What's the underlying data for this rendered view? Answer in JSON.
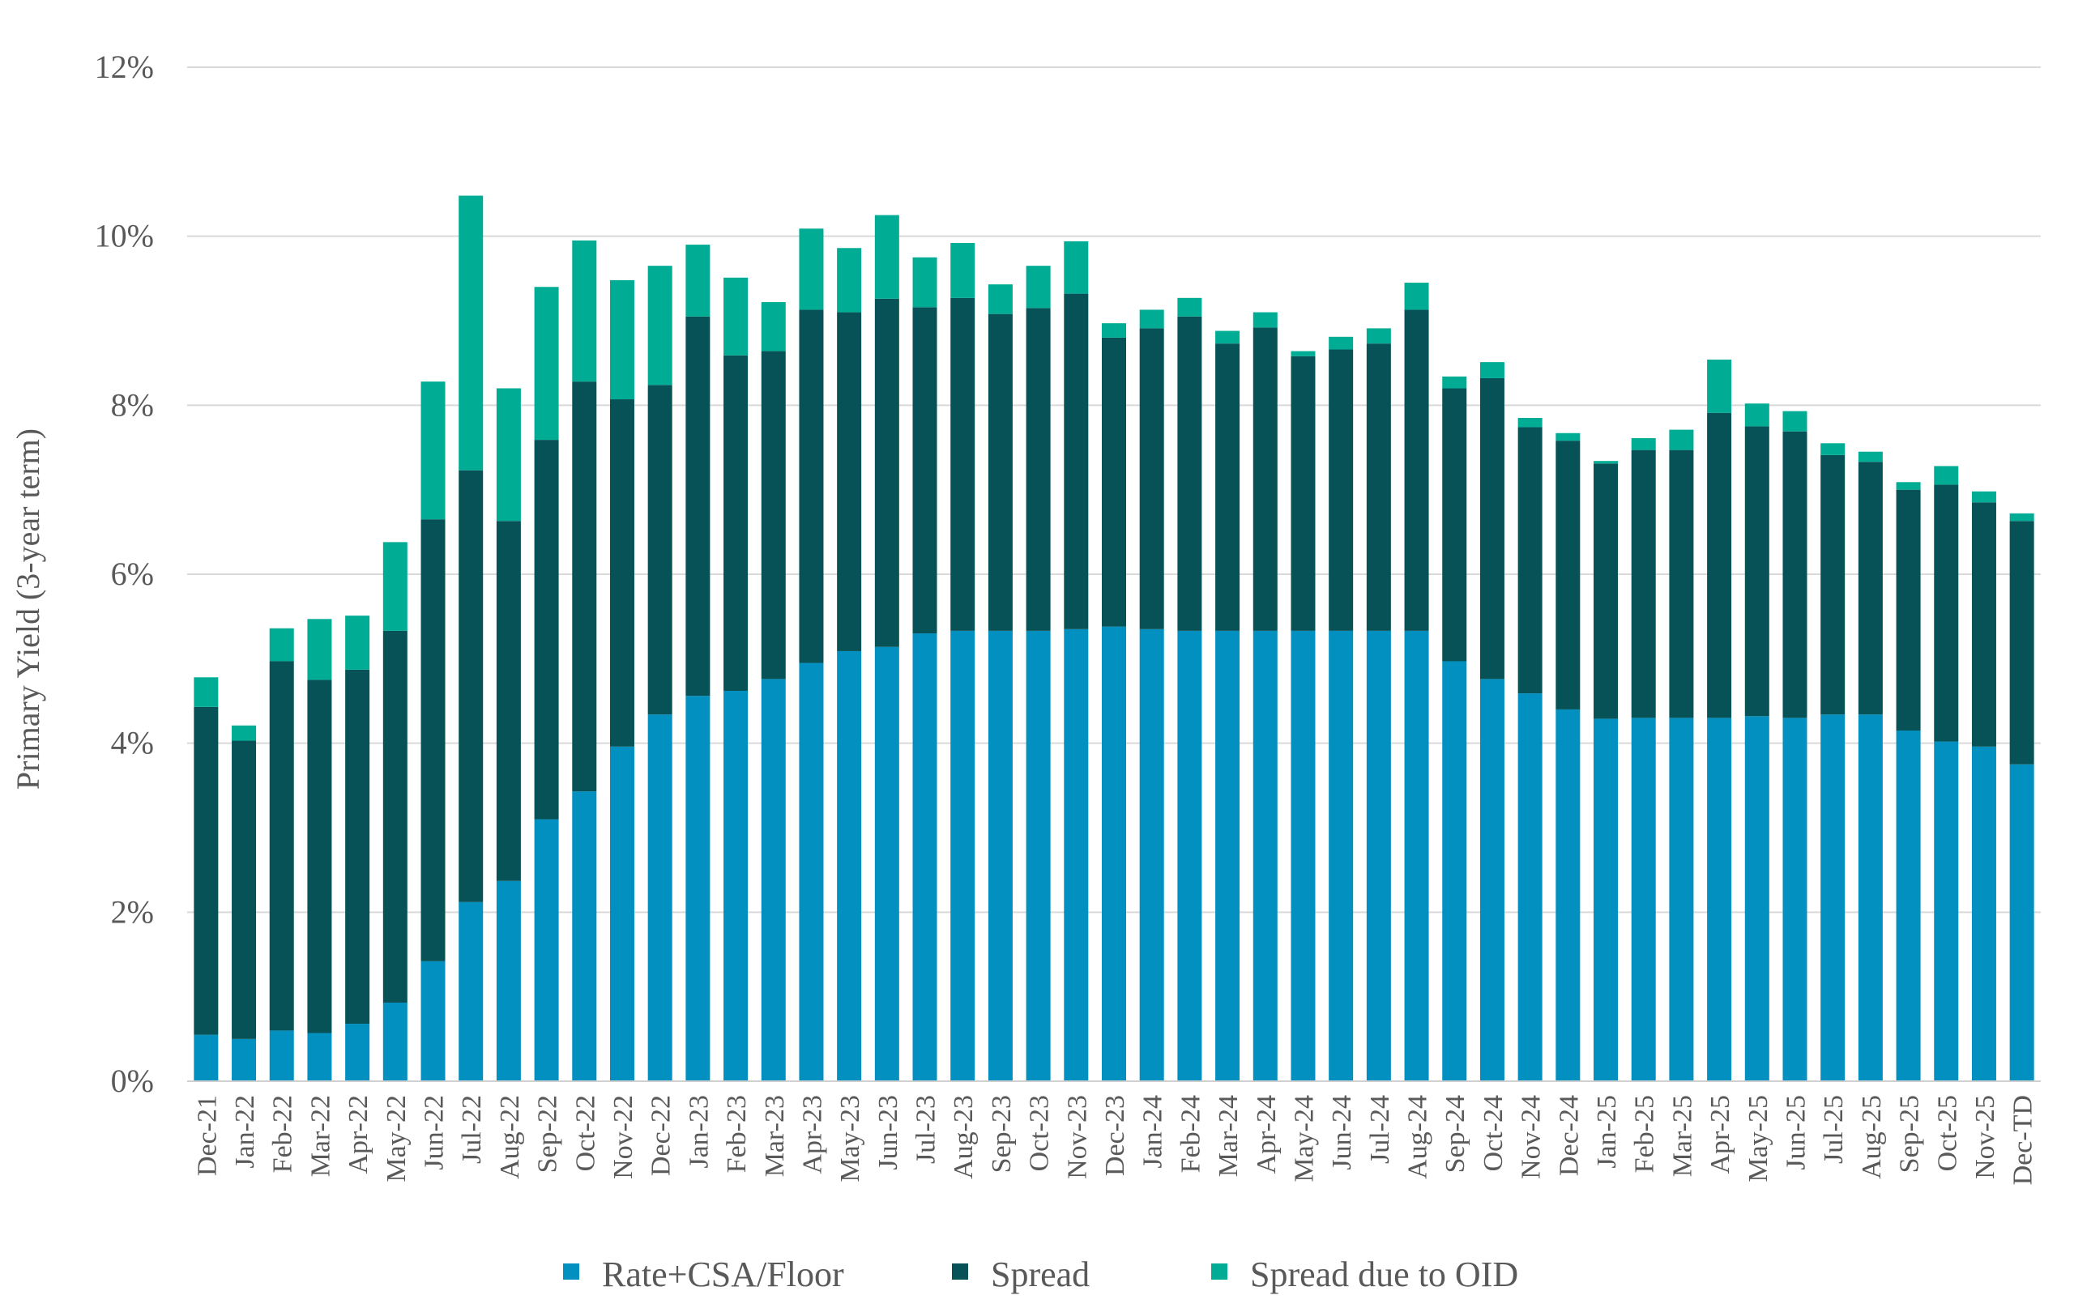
{
  "chart_data": {
    "type": "bar",
    "stacked": true,
    "title": "",
    "xlabel": "",
    "ylabel": "Primary Yield (3-year term)",
    "ylim": [
      0,
      12
    ],
    "yticks": [
      "0%",
      "2%",
      "4%",
      "6%",
      "8%",
      "10%",
      "12%"
    ],
    "ytick_values": [
      0,
      2,
      4,
      6,
      8,
      10,
      12
    ],
    "grid": true,
    "legend_placement": "bottom",
    "categories": [
      "Dec-21",
      "Jan-22",
      "Feb-22",
      "Mar-22",
      "Apr-22",
      "May-22",
      "Jun-22",
      "Jul-22",
      "Aug-22",
      "Sep-22",
      "Oct-22",
      "Nov-22",
      "Dec-22",
      "Jan-23",
      "Feb-23",
      "Mar-23",
      "Apr-23",
      "May-23",
      "Jun-23",
      "Jul-23",
      "Aug-23",
      "Sep-23",
      "Oct-23",
      "Nov-23",
      "Dec-23",
      "Jan-24",
      "Feb-24",
      "Mar-24",
      "Apr-24",
      "May-24",
      "Jun-24",
      "Jul-24",
      "Aug-24",
      "Sep-24",
      "Oct-24",
      "Nov-24",
      "Dec-24",
      "Jan-25",
      "Feb-25",
      "Mar-25",
      "Apr-25",
      "May-25",
      "Jun-25",
      "Jul-25",
      "Aug-25",
      "Sep-25",
      "Oct-25",
      "Nov-25",
      "Dec-TD"
    ],
    "series": [
      {
        "name": "Rate+CSA/Floor",
        "color": "#0290c0",
        "values": [
          0.55,
          0.5,
          0.6,
          0.57,
          0.68,
          0.93,
          1.42,
          2.12,
          2.37,
          3.1,
          3.43,
          3.96,
          4.34,
          4.56,
          4.62,
          4.76,
          4.95,
          5.09,
          5.14,
          5.3,
          5.33,
          5.33,
          5.33,
          5.35,
          5.38,
          5.35,
          5.33,
          5.33,
          5.33,
          5.33,
          5.33,
          5.33,
          5.33,
          4.97,
          4.76,
          4.59,
          4.4,
          4.29,
          4.3,
          4.3,
          4.3,
          4.32,
          4.3,
          4.34,
          4.34,
          4.15,
          4.02,
          3.96,
          3.75
        ]
      },
      {
        "name": "Spread",
        "color": "#075257",
        "values": [
          3.88,
          3.53,
          4.37,
          4.18,
          4.19,
          4.4,
          5.23,
          5.11,
          4.26,
          4.49,
          4.85,
          4.11,
          3.9,
          4.49,
          3.97,
          3.88,
          4.18,
          4.01,
          4.12,
          3.86,
          3.94,
          3.75,
          3.82,
          3.97,
          3.42,
          3.56,
          3.72,
          3.4,
          3.59,
          3.25,
          3.33,
          3.4,
          3.8,
          3.23,
          3.56,
          3.15,
          3.18,
          3.02,
          3.17,
          3.17,
          3.61,
          3.43,
          3.39,
          3.07,
          2.99,
          2.85,
          3.04,
          2.89,
          2.88
        ]
      },
      {
        "name": "Spread due to OID",
        "color": "#00ad94",
        "values": [
          0.35,
          0.18,
          0.39,
          0.72,
          0.64,
          1.05,
          1.63,
          3.25,
          1.57,
          1.81,
          1.67,
          1.41,
          1.41,
          0.85,
          0.92,
          0.58,
          0.96,
          0.76,
          0.99,
          0.59,
          0.65,
          0.35,
          0.5,
          0.62,
          0.17,
          0.22,
          0.22,
          0.15,
          0.18,
          0.06,
          0.15,
          0.18,
          0.32,
          0.14,
          0.19,
          0.11,
          0.09,
          0.03,
          0.14,
          0.24,
          0.63,
          0.27,
          0.24,
          0.14,
          0.12,
          0.09,
          0.22,
          0.13,
          0.09
        ]
      }
    ]
  }
}
